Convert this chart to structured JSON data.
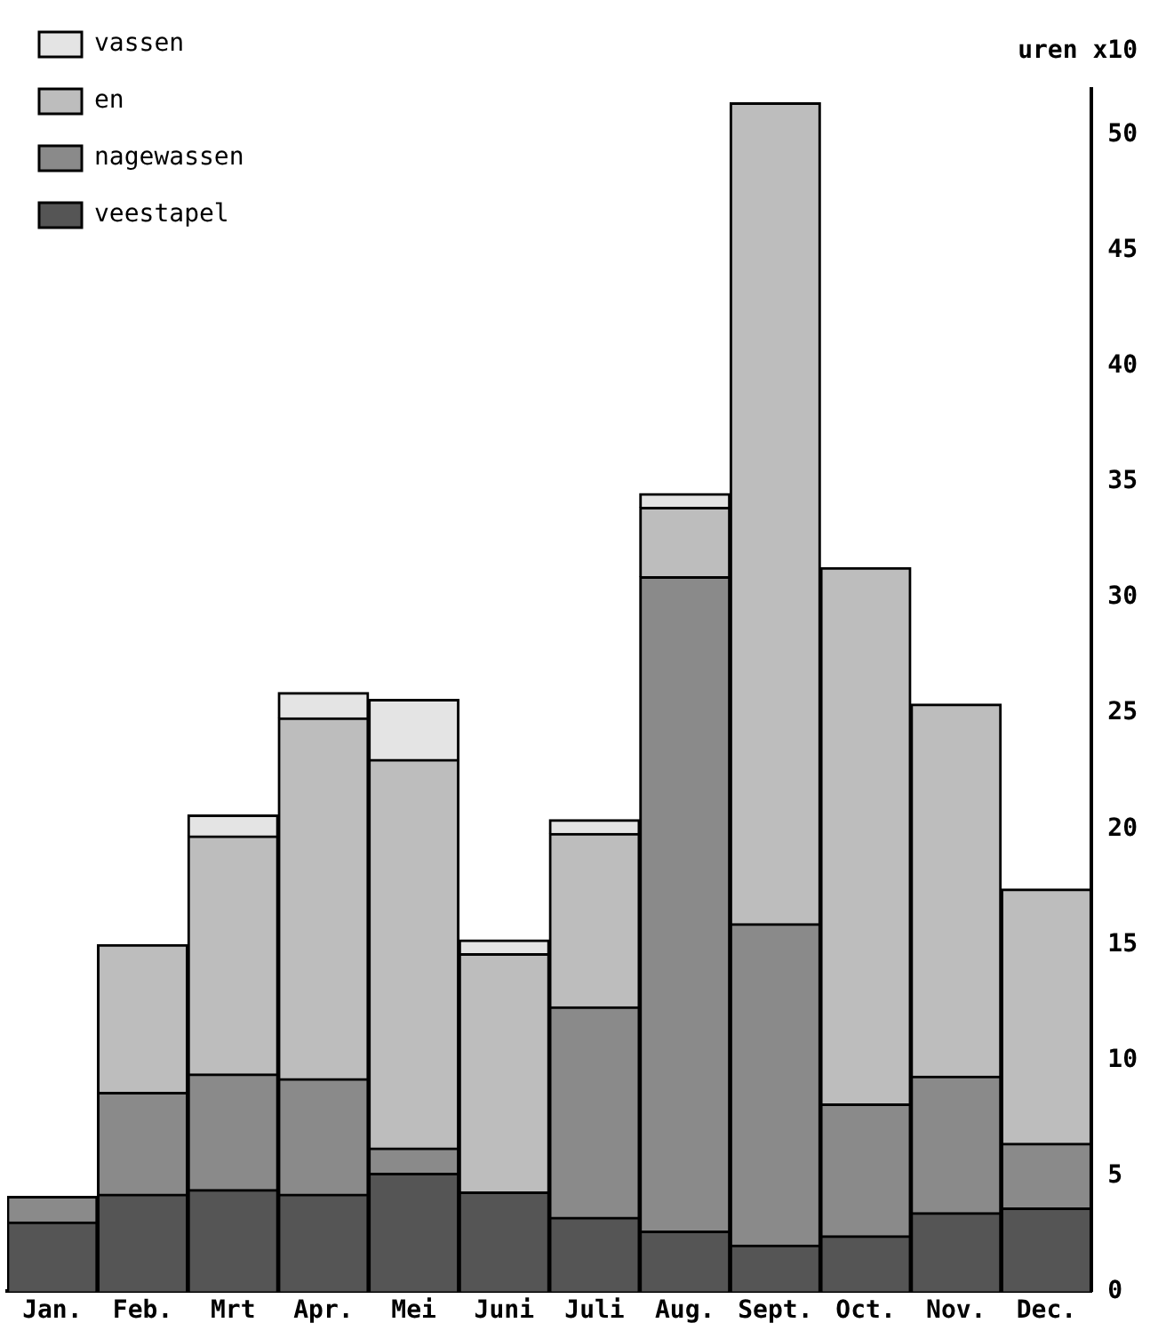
{
  "chart_data": {
    "type": "bar",
    "stacked": true,
    "ylabel": "uren x10",
    "categories": [
      "Jan.",
      "Feb.",
      "Mrt",
      "Apr.",
      "Mei",
      "Juni",
      "Juli",
      "Aug.",
      "Sept.",
      "Oct.",
      "Nov.",
      "Dec."
    ],
    "series": [
      {
        "name": "veestapel",
        "color": "#555555",
        "values": [
          3.0,
          4.2,
          4.4,
          4.2,
          5.1,
          4.3,
          3.2,
          2.6,
          2.0,
          2.4,
          3.4,
          3.6
        ]
      },
      {
        "name": "nagewassen",
        "color": "#8a8a8a",
        "values": [
          1.1,
          4.4,
          5.0,
          5.0,
          1.1,
          0,
          9.1,
          28.3,
          13.9,
          5.7,
          5.9,
          2.8
        ]
      },
      {
        "name": "en",
        "color": "#bdbdbd",
        "values": [
          0,
          6.4,
          10.3,
          15.6,
          16.8,
          10.3,
          7.5,
          3.0,
          35.5,
          23.2,
          16.1,
          11.0
        ]
      },
      {
        "name": "vassen",
        "color": "#e4e4e4",
        "values": [
          0,
          0,
          0.9,
          1.1,
          2.6,
          0.6,
          0.6,
          0.6,
          0,
          0,
          0,
          0
        ]
      }
    ],
    "ylim": [
      0,
      52
    ],
    "yticks": [
      0,
      5,
      10,
      15,
      20,
      25,
      30,
      35,
      40,
      45,
      50
    ],
    "grid": false,
    "legend": "top left"
  }
}
